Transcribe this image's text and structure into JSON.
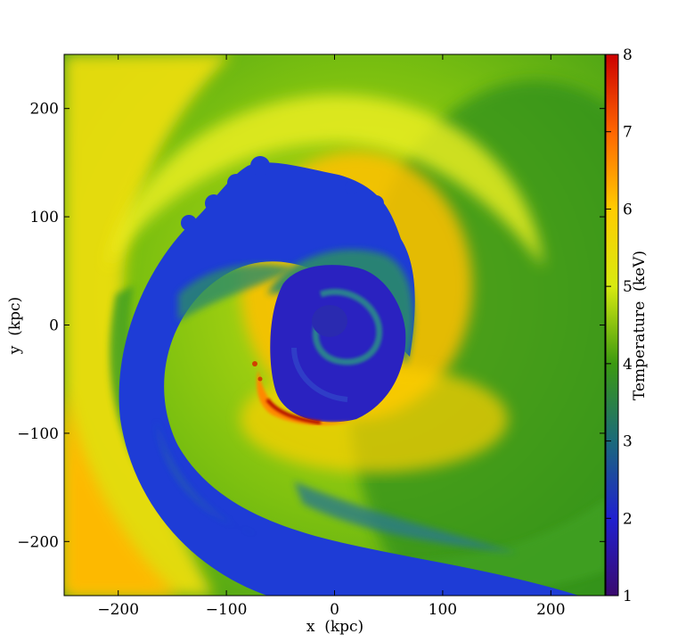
{
  "chart_data": {
    "type": "heatmap",
    "title": "",
    "xlabel": "x  (kpc)",
    "ylabel": "y  (kpc)",
    "xlim": [
      -250,
      250
    ],
    "ylim": [
      -250,
      250
    ],
    "xticks": [
      -200,
      -100,
      0,
      100,
      200
    ],
    "yticks": [
      -200,
      -100,
      0,
      100,
      200
    ],
    "xtick_labels": [
      "−200",
      "−100",
      "0",
      "100",
      "200"
    ],
    "ytick_labels": [
      "−200",
      "−100",
      "0",
      "100",
      "200"
    ],
    "grid": false,
    "colorbar": {
      "label": "Temperature  (keV)",
      "range": [
        1,
        8
      ],
      "ticks": [
        1,
        2,
        3,
        4,
        5,
        6,
        7,
        8
      ],
      "tick_labels": [
        "1",
        "2",
        "3",
        "4",
        "5",
        "6",
        "7",
        "8"
      ],
      "colormap": [
        "#3a0a6e",
        "#2020d0",
        "#1a6a7a",
        "#3c9a10",
        "#d8ea10",
        "#ffcc00",
        "#ff6600",
        "#cc0000"
      ]
    },
    "field_description_visible": "Spiral-shaped temperature map: cold (~2 keV) gas in a spiral arm wrapping around a cold core near the origin, surrounded by warmer (~4-6 keV) gas; small hot (~7-8 keV) region at the lower-left edge of the core."
  }
}
